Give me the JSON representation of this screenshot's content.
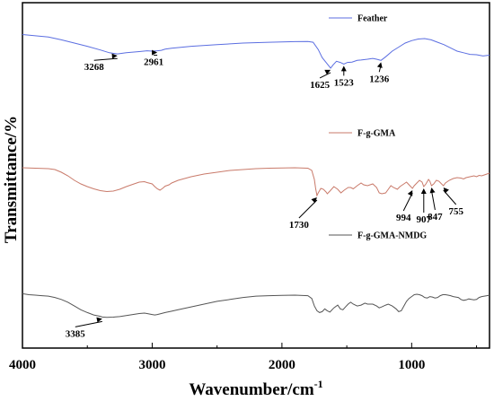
{
  "chart_data": {
    "type": "line",
    "xlabel": "Wavenumber/cm",
    "xlabel_sup": "-1",
    "ylabel": "Transmittance/%",
    "xlim": [
      4000,
      400
    ],
    "x_ticks": [
      4000,
      3000,
      2000,
      1000
    ],
    "x_tick_labels": [
      "4000",
      "3000",
      "2000",
      "1000"
    ],
    "grid": false,
    "series": [
      {
        "name": "Feather",
        "color": "#5b6ee1",
        "points": [
          [
            4000,
            0.905
          ],
          [
            3900,
            0.89
          ],
          [
            3800,
            0.875
          ],
          [
            3700,
            0.84
          ],
          [
            3600,
            0.8
          ],
          [
            3500,
            0.76
          ],
          [
            3400,
            0.715
          ],
          [
            3330,
            0.68
          ],
          [
            3268,
            0.665
          ],
          [
            3200,
            0.68
          ],
          [
            3100,
            0.695
          ],
          [
            3040,
            0.705
          ],
          [
            3000,
            0.7
          ],
          [
            2961,
            0.705
          ],
          [
            2930,
            0.71
          ],
          [
            2900,
            0.725
          ],
          [
            2850,
            0.735
          ],
          [
            2700,
            0.76
          ],
          [
            2500,
            0.78
          ],
          [
            2300,
            0.8
          ],
          [
            2100,
            0.81
          ],
          [
            1900,
            0.818
          ],
          [
            1800,
            0.82
          ],
          [
            1760,
            0.81
          ],
          [
            1720,
            0.72
          ],
          [
            1690,
            0.62
          ],
          [
            1660,
            0.56
          ],
          [
            1640,
            0.52
          ],
          [
            1625,
            0.49
          ],
          [
            1605,
            0.53
          ],
          [
            1580,
            0.575
          ],
          [
            1550,
            0.56
          ],
          [
            1523,
            0.54
          ],
          [
            1495,
            0.56
          ],
          [
            1460,
            0.565
          ],
          [
            1420,
            0.585
          ],
          [
            1390,
            0.59
          ],
          [
            1340,
            0.6
          ],
          [
            1300,
            0.61
          ],
          [
            1270,
            0.6
          ],
          [
            1236,
            0.585
          ],
          [
            1200,
            0.63
          ],
          [
            1150,
            0.7
          ],
          [
            1100,
            0.75
          ],
          [
            1050,
            0.8
          ],
          [
            1000,
            0.83
          ],
          [
            950,
            0.85
          ],
          [
            900,
            0.855
          ],
          [
            850,
            0.84
          ],
          [
            800,
            0.81
          ],
          [
            750,
            0.78
          ],
          [
            700,
            0.74
          ],
          [
            650,
            0.7
          ],
          [
            600,
            0.68
          ],
          [
            550,
            0.66
          ],
          [
            500,
            0.655
          ],
          [
            450,
            0.64
          ],
          [
            400,
            0.65
          ]
        ]
      },
      {
        "name": "F-g-GMA",
        "color": "#c97a6a",
        "points": [
          [
            4000,
            0.58
          ],
          [
            3900,
            0.575
          ],
          [
            3800,
            0.57
          ],
          [
            3750,
            0.56
          ],
          [
            3700,
            0.53
          ],
          [
            3650,
            0.49
          ],
          [
            3600,
            0.44
          ],
          [
            3550,
            0.4
          ],
          [
            3500,
            0.37
          ],
          [
            3450,
            0.345
          ],
          [
            3400,
            0.325
          ],
          [
            3350,
            0.315
          ],
          [
            3300,
            0.32
          ],
          [
            3250,
            0.34
          ],
          [
            3200,
            0.37
          ],
          [
            3150,
            0.395
          ],
          [
            3100,
            0.42
          ],
          [
            3060,
            0.425
          ],
          [
            3040,
            0.415
          ],
          [
            3000,
            0.4
          ],
          [
            2980,
            0.37
          ],
          [
            2960,
            0.345
          ],
          [
            2940,
            0.33
          ],
          [
            2920,
            0.35
          ],
          [
            2900,
            0.375
          ],
          [
            2870,
            0.39
          ],
          [
            2850,
            0.41
          ],
          [
            2800,
            0.44
          ],
          [
            2700,
            0.48
          ],
          [
            2600,
            0.51
          ],
          [
            2500,
            0.53
          ],
          [
            2400,
            0.55
          ],
          [
            2300,
            0.56
          ],
          [
            2200,
            0.57
          ],
          [
            2100,
            0.575
          ],
          [
            2000,
            0.578
          ],
          [
            1900,
            0.58
          ],
          [
            1800,
            0.575
          ],
          [
            1770,
            0.55
          ],
          [
            1750,
            0.45
          ],
          [
            1740,
            0.35
          ],
          [
            1730,
            0.27
          ],
          [
            1720,
            0.3
          ],
          [
            1700,
            0.35
          ],
          [
            1680,
            0.34
          ],
          [
            1660,
            0.31
          ],
          [
            1650,
            0.29
          ],
          [
            1630,
            0.32
          ],
          [
            1600,
            0.37
          ],
          [
            1570,
            0.34
          ],
          [
            1545,
            0.3
          ],
          [
            1520,
            0.33
          ],
          [
            1490,
            0.36
          ],
          [
            1470,
            0.36
          ],
          [
            1450,
            0.345
          ],
          [
            1420,
            0.38
          ],
          [
            1390,
            0.41
          ],
          [
            1370,
            0.39
          ],
          [
            1340,
            0.38
          ],
          [
            1300,
            0.4
          ],
          [
            1270,
            0.36
          ],
          [
            1250,
            0.3
          ],
          [
            1230,
            0.29
          ],
          [
            1200,
            0.3
          ],
          [
            1180,
            0.34
          ],
          [
            1160,
            0.38
          ],
          [
            1140,
            0.36
          ],
          [
            1110,
            0.34
          ],
          [
            1090,
            0.37
          ],
          [
            1060,
            0.4
          ],
          [
            1040,
            0.42
          ],
          [
            1020,
            0.39
          ],
          [
            994,
            0.35
          ],
          [
            980,
            0.38
          ],
          [
            960,
            0.41
          ],
          [
            940,
            0.44
          ],
          [
            920,
            0.42
          ],
          [
            907,
            0.37
          ],
          [
            890,
            0.4
          ],
          [
            870,
            0.45
          ],
          [
            860,
            0.43
          ],
          [
            847,
            0.38
          ],
          [
            830,
            0.4
          ],
          [
            810,
            0.44
          ],
          [
            790,
            0.43
          ],
          [
            770,
            0.4
          ],
          [
            755,
            0.38
          ],
          [
            740,
            0.41
          ],
          [
            710,
            0.44
          ],
          [
            680,
            0.46
          ],
          [
            650,
            0.47
          ],
          [
            620,
            0.465
          ],
          [
            600,
            0.455
          ],
          [
            580,
            0.47
          ],
          [
            550,
            0.48
          ],
          [
            520,
            0.49
          ],
          [
            500,
            0.48
          ],
          [
            480,
            0.495
          ],
          [
            460,
            0.49
          ],
          [
            440,
            0.5
          ],
          [
            420,
            0.51
          ],
          [
            400,
            0.52
          ]
        ]
      },
      {
        "name": "F-g-GMA-NMDG",
        "color": "#555555",
        "points": [
          [
            4000,
            0.31
          ],
          [
            3950,
            0.3
          ],
          [
            3900,
            0.295
          ],
          [
            3850,
            0.29
          ],
          [
            3800,
            0.285
          ],
          [
            3750,
            0.27
          ],
          [
            3700,
            0.25
          ],
          [
            3650,
            0.22
          ],
          [
            3600,
            0.18
          ],
          [
            3550,
            0.14
          ],
          [
            3500,
            0.11
          ],
          [
            3450,
            0.085
          ],
          [
            3400,
            0.07
          ],
          [
            3385,
            0.063
          ],
          [
            3350,
            0.06
          ],
          [
            3300,
            0.062
          ],
          [
            3250,
            0.068
          ],
          [
            3200,
            0.078
          ],
          [
            3150,
            0.09
          ],
          [
            3100,
            0.1
          ],
          [
            3060,
            0.105
          ],
          [
            3040,
            0.1
          ],
          [
            3000,
            0.09
          ],
          [
            2980,
            0.085
          ],
          [
            2960,
            0.09
          ],
          [
            2930,
            0.1
          ],
          [
            2900,
            0.11
          ],
          [
            2850,
            0.125
          ],
          [
            2800,
            0.14
          ],
          [
            2700,
            0.17
          ],
          [
            2600,
            0.2
          ],
          [
            2500,
            0.23
          ],
          [
            2400,
            0.25
          ],
          [
            2300,
            0.27
          ],
          [
            2200,
            0.285
          ],
          [
            2100,
            0.29
          ],
          [
            2000,
            0.292
          ],
          [
            1900,
            0.295
          ],
          [
            1800,
            0.29
          ],
          [
            1770,
            0.26
          ],
          [
            1750,
            0.18
          ],
          [
            1730,
            0.13
          ],
          [
            1710,
            0.11
          ],
          [
            1690,
            0.12
          ],
          [
            1670,
            0.15
          ],
          [
            1650,
            0.13
          ],
          [
            1630,
            0.115
          ],
          [
            1600,
            0.16
          ],
          [
            1570,
            0.19
          ],
          [
            1550,
            0.15
          ],
          [
            1530,
            0.14
          ],
          [
            1510,
            0.17
          ],
          [
            1490,
            0.2
          ],
          [
            1470,
            0.22
          ],
          [
            1450,
            0.2
          ],
          [
            1420,
            0.18
          ],
          [
            1390,
            0.19
          ],
          [
            1360,
            0.21
          ],
          [
            1340,
            0.2
          ],
          [
            1300,
            0.2
          ],
          [
            1270,
            0.18
          ],
          [
            1250,
            0.16
          ],
          [
            1230,
            0.17
          ],
          [
            1200,
            0.19
          ],
          [
            1180,
            0.2
          ],
          [
            1150,
            0.18
          ],
          [
            1120,
            0.15
          ],
          [
            1100,
            0.12
          ],
          [
            1080,
            0.13
          ],
          [
            1060,
            0.18
          ],
          [
            1040,
            0.23
          ],
          [
            1020,
            0.26
          ],
          [
            1000,
            0.28
          ],
          [
            980,
            0.3
          ],
          [
            960,
            0.305
          ],
          [
            940,
            0.3
          ],
          [
            920,
            0.29
          ],
          [
            900,
            0.27
          ],
          [
            880,
            0.265
          ],
          [
            860,
            0.28
          ],
          [
            840,
            0.275
          ],
          [
            820,
            0.265
          ],
          [
            800,
            0.27
          ],
          [
            780,
            0.29
          ],
          [
            760,
            0.3
          ],
          [
            740,
            0.3
          ],
          [
            720,
            0.295
          ],
          [
            700,
            0.29
          ],
          [
            680,
            0.28
          ],
          [
            660,
            0.275
          ],
          [
            640,
            0.27
          ],
          [
            620,
            0.25
          ],
          [
            600,
            0.24
          ],
          [
            580,
            0.245
          ],
          [
            560,
            0.255
          ],
          [
            540,
            0.25
          ],
          [
            520,
            0.245
          ],
          [
            500,
            0.25
          ],
          [
            480,
            0.27
          ],
          [
            460,
            0.28
          ],
          [
            440,
            0.285
          ],
          [
            420,
            0.29
          ],
          [
            400,
            0.295
          ]
        ]
      }
    ],
    "annotations": [
      {
        "label": "3268",
        "series": 0,
        "x": 3268
      },
      {
        "label": "2961",
        "series": 0,
        "x": 2961
      },
      {
        "label": "1625",
        "series": 0,
        "x": 1625
      },
      {
        "label": "1523",
        "series": 0,
        "x": 1523
      },
      {
        "label": "1236",
        "series": 0,
        "x": 1236
      },
      {
        "label": "1730",
        "series": 1,
        "x": 1730
      },
      {
        "label": "994",
        "series": 1,
        "x": 994
      },
      {
        "label": "907",
        "series": 1,
        "x": 907
      },
      {
        "label": "847",
        "series": 1,
        "x": 847
      },
      {
        "label": "755",
        "series": 1,
        "x": 755
      },
      {
        "label": "3385",
        "series": 2,
        "x": 3385
      }
    ],
    "legends": [
      {
        "label": "Feather",
        "series": 0
      },
      {
        "label": "F-g-GMA",
        "series": 1
      },
      {
        "label": "F-g-GMA-NMDG",
        "series": 2
      }
    ]
  }
}
